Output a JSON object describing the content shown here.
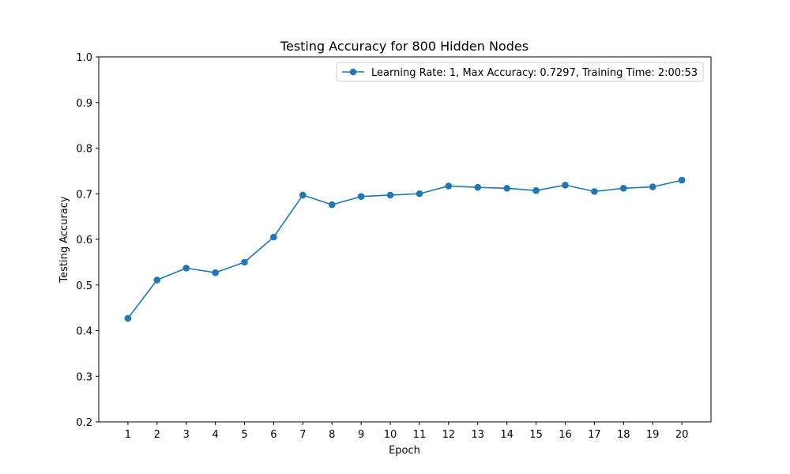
{
  "chart_data": {
    "type": "line",
    "title": "Testing Accuracy for 800 Hidden Nodes",
    "xlabel": "Epoch",
    "ylabel": "Testing Accuracy",
    "ylim": [
      0.2,
      1.0
    ],
    "xlim": [
      0,
      21
    ],
    "x": [
      1,
      2,
      3,
      4,
      5,
      6,
      7,
      8,
      9,
      10,
      11,
      12,
      13,
      14,
      15,
      16,
      17,
      18,
      19,
      20
    ],
    "x_tick_labels": [
      "1",
      "2",
      "3",
      "4",
      "5",
      "6",
      "7",
      "8",
      "9",
      "10",
      "11",
      "12",
      "13",
      "14",
      "15",
      "16",
      "17",
      "18",
      "19",
      "20"
    ],
    "y_ticks": [
      0.2,
      0.3,
      0.4,
      0.5,
      0.6,
      0.7,
      0.8,
      0.9,
      1.0
    ],
    "y_tick_labels": [
      "0.2",
      "0.3",
      "0.4",
      "0.5",
      "0.6",
      "0.7",
      "0.8",
      "0.9",
      "1.0"
    ],
    "grid": false,
    "legend_position": "top-right",
    "series": [
      {
        "name": "Learning Rate: 1, Max Accuracy: 0.7297, Training Time: 2:00:53",
        "color": "#1f77b4",
        "marker": "circle",
        "values": [
          0.427,
          0.511,
          0.537,
          0.527,
          0.55,
          0.605,
          0.697,
          0.676,
          0.694,
          0.697,
          0.7,
          0.717,
          0.714,
          0.712,
          0.707,
          0.719,
          0.705,
          0.712,
          0.715,
          0.7297
        ]
      }
    ]
  }
}
